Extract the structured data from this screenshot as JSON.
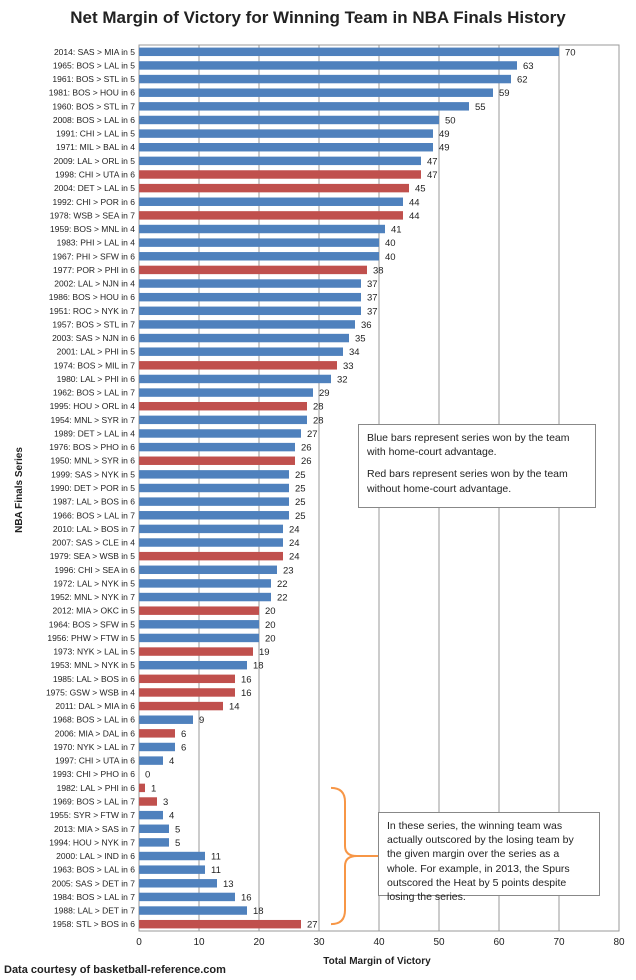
{
  "chart_data": {
    "type": "bar",
    "orientation": "horizontal",
    "title": "Net Margin of Victory for Winning Team in NBA Finals History",
    "xlabel": "Total Margin of Victory",
    "ylabel": "NBA Finals Series",
    "xlim": [
      0,
      80
    ],
    "xticks": [
      0,
      10,
      20,
      30,
      40,
      50,
      60,
      70,
      80
    ],
    "grid": true,
    "colors": {
      "home": "#4f81bd",
      "away": "#c0504d"
    },
    "categories": [
      {
        "label": "2014: SAS > MIA in 5",
        "value": 70,
        "type": "home"
      },
      {
        "label": "1965: BOS > LAL in 5",
        "value": 63,
        "type": "home"
      },
      {
        "label": "1961: BOS > STL in 5",
        "value": 62,
        "type": "home"
      },
      {
        "label": "1981: BOS > HOU in 6",
        "value": 59,
        "type": "home"
      },
      {
        "label": "1960: BOS > STL in 7",
        "value": 55,
        "type": "home"
      },
      {
        "label": "2008: BOS > LAL in 6",
        "value": 50,
        "type": "home"
      },
      {
        "label": "1991: CHI > LAL in 5",
        "value": 49,
        "type": "home"
      },
      {
        "label": "1971: MIL > BAL in 4",
        "value": 49,
        "type": "home"
      },
      {
        "label": "2009: LAL > ORL in 5",
        "value": 47,
        "type": "home"
      },
      {
        "label": "1998: CHI > UTA in 6",
        "value": 47,
        "type": "away"
      },
      {
        "label": "2004: DET > LAL in 5",
        "value": 45,
        "type": "away"
      },
      {
        "label": "1992: CHI > POR in 6",
        "value": 44,
        "type": "home"
      },
      {
        "label": "1978: WSB > SEA in 7",
        "value": 44,
        "type": "away"
      },
      {
        "label": "1959: BOS > MNL in 4",
        "value": 41,
        "type": "home"
      },
      {
        "label": "1983: PHI > LAL in 4",
        "value": 40,
        "type": "home"
      },
      {
        "label": "1967: PHI > SFW in 6",
        "value": 40,
        "type": "home"
      },
      {
        "label": "1977: POR > PHI in 6",
        "value": 38,
        "type": "away"
      },
      {
        "label": "2002: LAL > NJN in 4",
        "value": 37,
        "type": "home"
      },
      {
        "label": "1986: BOS > HOU in 6",
        "value": 37,
        "type": "home"
      },
      {
        "label": "1951: ROC > NYK in 7",
        "value": 37,
        "type": "home"
      },
      {
        "label": "1957: BOS > STL in 7",
        "value": 36,
        "type": "home"
      },
      {
        "label": "2003: SAS > NJN in 6",
        "value": 35,
        "type": "home"
      },
      {
        "label": "2001: LAL > PHI in 5",
        "value": 34,
        "type": "home"
      },
      {
        "label": "1974: BOS > MIL in 7",
        "value": 33,
        "type": "away"
      },
      {
        "label": "1980: LAL > PHI in 6",
        "value": 32,
        "type": "home"
      },
      {
        "label": "1962: BOS > LAL in 7",
        "value": 29,
        "type": "home"
      },
      {
        "label": "1995: HOU > ORL in 4",
        "value": 28,
        "type": "away"
      },
      {
        "label": "1954: MNL > SYR in 7",
        "value": 28,
        "type": "home"
      },
      {
        "label": "1989: DET > LAL in 4",
        "value": 27,
        "type": "home"
      },
      {
        "label": "1976: BOS > PHO in 6",
        "value": 26,
        "type": "home"
      },
      {
        "label": "1950: MNL > SYR in 6",
        "value": 26,
        "type": "away"
      },
      {
        "label": "1999: SAS > NYK in 5",
        "value": 25,
        "type": "home"
      },
      {
        "label": "1990: DET > POR in 5",
        "value": 25,
        "type": "home"
      },
      {
        "label": "1987: LAL > BOS in 6",
        "value": 25,
        "type": "home"
      },
      {
        "label": "1966: BOS > LAL in 7",
        "value": 25,
        "type": "home"
      },
      {
        "label": "2010: LAL > BOS in 7",
        "value": 24,
        "type": "home"
      },
      {
        "label": "2007: SAS > CLE in 4",
        "value": 24,
        "type": "home"
      },
      {
        "label": "1979: SEA > WSB in 5",
        "value": 24,
        "type": "away"
      },
      {
        "label": "1996: CHI > SEA in 6",
        "value": 23,
        "type": "home"
      },
      {
        "label": "1972: LAL > NYK in 5",
        "value": 22,
        "type": "home"
      },
      {
        "label": "1952: MNL > NYK in 7",
        "value": 22,
        "type": "home"
      },
      {
        "label": "2012: MIA > OKC in 5",
        "value": 20,
        "type": "away"
      },
      {
        "label": "1964: BOS > SFW in 5",
        "value": 20,
        "type": "home"
      },
      {
        "label": "1956: PHW > FTW in 5",
        "value": 20,
        "type": "home"
      },
      {
        "label": "1973: NYK > LAL in 5",
        "value": 19,
        "type": "away"
      },
      {
        "label": "1953: MNL > NYK in 5",
        "value": 18,
        "type": "home"
      },
      {
        "label": "1985: LAL > BOS in 6",
        "value": 16,
        "type": "away"
      },
      {
        "label": "1975: GSW > WSB in 4",
        "value": 16,
        "type": "away"
      },
      {
        "label": "2011: DAL > MIA in 6",
        "value": 14,
        "type": "away"
      },
      {
        "label": "1968: BOS > LAL in 6",
        "value": 9,
        "type": "home"
      },
      {
        "label": "2006: MIA > DAL in 6",
        "value": 6,
        "type": "away"
      },
      {
        "label": "1970: NYK > LAL in 7",
        "value": 6,
        "type": "home"
      },
      {
        "label": "1997: CHI > UTA in 6",
        "value": 4,
        "type": "home"
      },
      {
        "label": "1993: CHI > PHO in 6",
        "value": 0,
        "type": "away"
      },
      {
        "label": "1982: LAL > PHI in 6",
        "value": 1,
        "type": "away"
      },
      {
        "label": "1969: BOS > LAL in 7",
        "value": 3,
        "type": "away"
      },
      {
        "label": "1955: SYR > FTW in 7",
        "value": 4,
        "type": "home"
      },
      {
        "label": "2013: MIA > SAS in 7",
        "value": 5,
        "type": "home"
      },
      {
        "label": "1994: HOU > NYK in 7",
        "value": 5,
        "type": "home"
      },
      {
        "label": "2000: LAL > IND in 6",
        "value": 11,
        "type": "home"
      },
      {
        "label": "1963: BOS > LAL in 6",
        "value": 11,
        "type": "home"
      },
      {
        "label": "2005: SAS > DET in 7",
        "value": 13,
        "type": "home"
      },
      {
        "label": "1984: BOS > LAL in 7",
        "value": 16,
        "type": "home"
      },
      {
        "label": "1988: LAL > DET in 7",
        "value": 18,
        "type": "home"
      },
      {
        "label": "1958: STL > BOS in 6",
        "value": 27,
        "type": "away"
      }
    ],
    "bracket": {
      "first_label": "1982: LAL > PHI in 6",
      "last_label": "1958: STL > BOS in 6",
      "color": "#f79646"
    }
  },
  "annotations": {
    "note_home_line": "Blue bars represent series won by the team with home-court advantage.",
    "note_away_line": "Red bars represent series won by the team without home-court advantage.",
    "note_outscored": "In these series, the winning team was actually outscored by the losing team by the given margin over the series as a whole. For example, in 2013, the Spurs outscored the Heat by 5 points despite losing the series."
  },
  "source": "Data courtesy of basketball-reference.com"
}
